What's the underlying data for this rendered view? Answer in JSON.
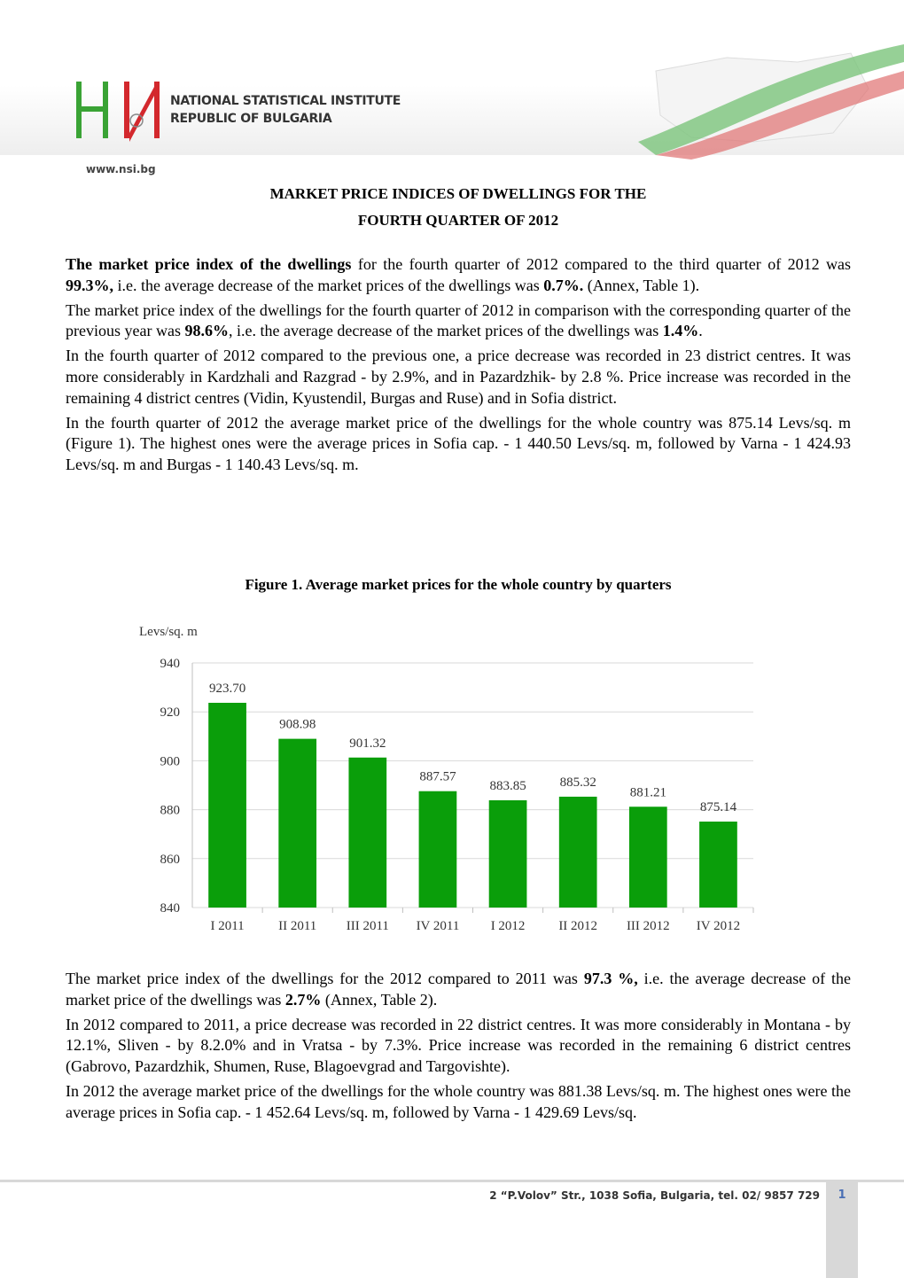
{
  "header": {
    "org": "NATIONAL STATISTICAL INSTITUTE",
    "country": "REPUBLIC OF BULGARIA",
    "site": "www.nsi.bg"
  },
  "title": [
    "MARKET PRICE INDICES OF DWELLINGS FOR THE",
    "FOURTH QUARTER OF 2012"
  ],
  "paragraphs": [
    {
      "runs": [
        {
          "text": "The market price index of the dwellings",
          "bold": true
        },
        {
          "text": " for the fourth quarter of 2012 compared to the third quarter of 2012 was ",
          "bold": false
        },
        {
          "text": "99.3%,",
          "bold": true
        },
        {
          "text": " i.e. the average decrease of the market prices of the dwellings was ",
          "bold": false
        },
        {
          "text": "0.7%.",
          "bold": true
        },
        {
          "text": " (Annex, Table 1).",
          "bold": false
        }
      ]
    },
    {
      "runs": [
        {
          "text": "The market price index of the dwellings for the fourth quarter of 2012 in comparison with the corresponding quarter of the previous year was ",
          "bold": false
        },
        {
          "text": "98.6%",
          "bold": true
        },
        {
          "text": ", i.e. the average decrease of the market prices of the dwellings was ",
          "bold": false
        },
        {
          "text": "1.4%",
          "bold": true
        },
        {
          "text": ".",
          "bold": false
        }
      ]
    },
    {
      "runs": [
        {
          "text": "In the fourth quarter of 2012 compared to the previous one, a price decrease was recorded in 23 district centres. It was more considerably in Kardzhali and Razgrad - by 2.9%, and in Pazardzhik- by 2.8 %. Price increase was recorded in the remaining 4 district centres (Vidin, Kyustendil, Burgas and Ruse) and in Sofia district.",
          "bold": false
        }
      ]
    },
    {
      "runs": [
        {
          "text": "In the fourth quarter of 2012 the average market price of the dwellings for the whole country was 875.14 Levs/sq. m (Figure 1). The highest ones were the average prices in Sofia cap. - 1 440.50 Levs/sq. m, followed by Varna - 1 424.93 Levs/sq. m and Burgas - 1 140.43 Levs/sq. m.",
          "bold": false
        }
      ]
    }
  ],
  "figure_caption": "Figure 1. Average market prices for the whole country by quarters",
  "chart_data": {
    "type": "bar",
    "y_label": "Levs/sq. m",
    "categories": [
      "I 2011",
      "II 2011",
      "III 2011",
      "IV 2011",
      "I 2012",
      "II 2012",
      "III 2012",
      "IV 2012"
    ],
    "values": [
      923.7,
      908.98,
      901.32,
      887.57,
      883.85,
      885.32,
      881.21,
      875.14
    ],
    "value_labels": [
      "923.70",
      "908.98",
      "901.32",
      "887.57",
      "883.85",
      "885.32",
      "881.21",
      "875.14"
    ],
    "color": "#0a9e0a",
    "ylim": [
      840,
      940
    ],
    "yticks": [
      840,
      860,
      880,
      900,
      920,
      940
    ],
    "grid": true
  },
  "paragraphs2": [
    {
      "runs": [
        {
          "text": "The market price index of the dwellings for the 2012 compared to 2011 was ",
          "bold": false
        },
        {
          "text": "97.3 %,",
          "bold": true
        },
        {
          "text": " i.e. the average decrease of the market price of the dwellings was ",
          "bold": false
        },
        {
          "text": "2.7%",
          "bold": true
        },
        {
          "text": " (Annex, Table 2).",
          "bold": false
        }
      ]
    },
    {
      "runs": [
        {
          "text": "In 2012 compared to 2011, a price decrease was recorded in 22 district centres. It was more considerably in Montana - by 12.1%, Sliven - by 8.2.0% and in Vratsa - by 7.3%. Price increase was recorded in the remaining 6 district centres (Gabrovo, Pazardzhik, Shumen, Ruse, Blagoevgrad and Targovishte).",
          "bold": false
        }
      ]
    },
    {
      "runs": [
        {
          "text": "In 2012 the average market price of the dwellings for the whole country was 881.38 Levs/sq. m. The highest ones were the average prices in Sofia cap. - 1 452.64 Levs/sq. m, followed by Varna - 1 429.69 Levs/sq.",
          "bold": false
        }
      ]
    }
  ],
  "footer": {
    "address": "2 “P.Volov” Str., 1038 Sofia, Bulgaria, tel. 02/ 9857 729",
    "page": "1"
  }
}
